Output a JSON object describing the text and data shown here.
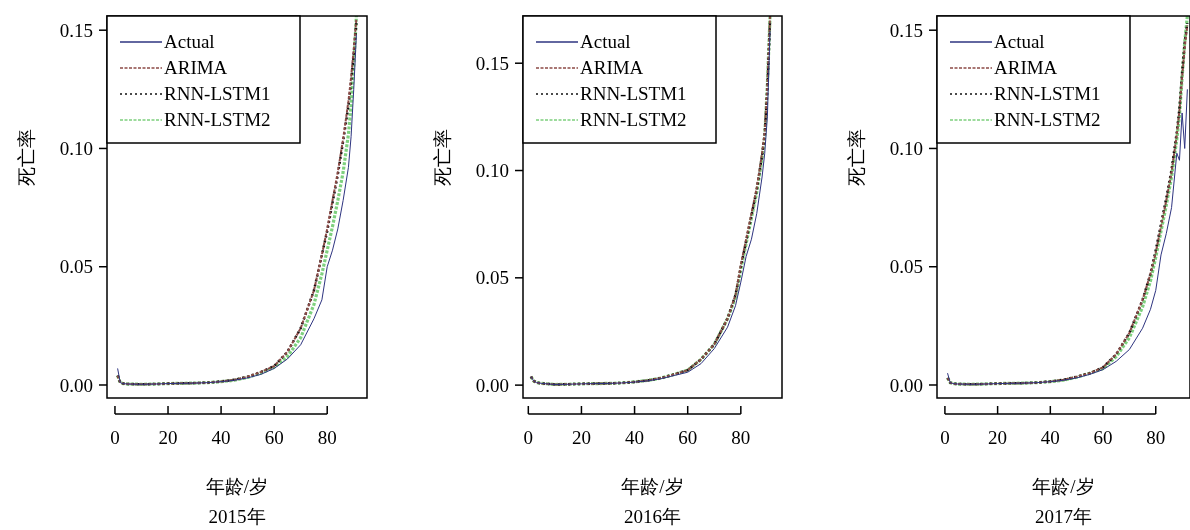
{
  "chart_data": [
    {
      "type": "line",
      "title": "2015年",
      "xlabel": "年龄/岁",
      "ylabel": "死亡率",
      "xlim": [
        -3,
        95
      ],
      "ylim": [
        -0.0055,
        0.156
      ],
      "xticks": [
        0,
        20,
        40,
        60,
        80
      ],
      "yticks": [
        {
          "value": 0,
          "label": "0.00"
        },
        {
          "value": 0.05,
          "label": "0.05"
        },
        {
          "value": 0.1,
          "label": "0.10"
        },
        {
          "value": 0.15,
          "label": "0.15"
        }
      ],
      "legend": "top left",
      "grid": false,
      "x": [
        1,
        2,
        3,
        5,
        10,
        15,
        20,
        25,
        30,
        35,
        40,
        45,
        50,
        55,
        60,
        65,
        70,
        75,
        78,
        80,
        82,
        84,
        86,
        88,
        89,
        90,
        91
      ],
      "series": [
        {
          "name": "Actual",
          "color": "#2e3480",
          "line_style": "solid",
          "values": [
            0.007,
            0.001,
            0.0006,
            0.0004,
            0.0003,
            0.0004,
            0.0006,
            0.0007,
            0.0008,
            0.001,
            0.0014,
            0.002,
            0.003,
            0.0045,
            0.007,
            0.011,
            0.017,
            0.028,
            0.036,
            0.05,
            0.057,
            0.066,
            0.078,
            0.092,
            0.105,
            0.125,
            0.148
          ]
        },
        {
          "name": "ARIMA",
          "color": "#8c4a46",
          "line_style": "dashed",
          "values": [
            0.004,
            0.001,
            0.0006,
            0.0004,
            0.0003,
            0.0004,
            0.0006,
            0.0007,
            0.0008,
            0.001,
            0.0015,
            0.0022,
            0.0035,
            0.0055,
            0.008,
            0.014,
            0.024,
            0.04,
            0.055,
            0.066,
            0.078,
            0.09,
            0.104,
            0.12,
            0.13,
            0.142,
            0.155
          ]
        },
        {
          "name": "RNN-LSTM1",
          "color": "#111111",
          "line_style": "dotted",
          "values": [
            0.004,
            0.001,
            0.0006,
            0.0004,
            0.0003,
            0.0004,
            0.0006,
            0.0007,
            0.0008,
            0.001,
            0.0015,
            0.0022,
            0.0035,
            0.0055,
            0.008,
            0.014,
            0.024,
            0.04,
            0.055,
            0.065,
            0.077,
            0.089,
            0.103,
            0.118,
            0.128,
            0.14,
            0.153
          ]
        },
        {
          "name": "RNN-LSTM2",
          "color": "#7ed07e",
          "line_style": "dashed",
          "values": [
            0.004,
            0.001,
            0.0006,
            0.0004,
            0.0003,
            0.0004,
            0.0006,
            0.0007,
            0.0008,
            0.001,
            0.0014,
            0.002,
            0.0032,
            0.005,
            0.0075,
            0.012,
            0.02,
            0.034,
            0.047,
            0.057,
            0.067,
            0.078,
            0.09,
            0.106,
            0.118,
            0.135,
            0.156
          ]
        }
      ]
    },
    {
      "type": "line",
      "title": "2016年",
      "xlabel": "年龄/岁",
      "ylabel": "死亡率",
      "xlim": [
        -2,
        95.5
      ],
      "ylim": [
        -0.006,
        0.172
      ],
      "xticks": [
        0,
        20,
        40,
        60,
        80
      ],
      "yticks": [
        {
          "value": 0,
          "label": "0.00"
        },
        {
          "value": 0.05,
          "label": "0.05"
        },
        {
          "value": 0.1,
          "label": "0.10"
        },
        {
          "value": 0.15,
          "label": "0.15"
        }
      ],
      "legend": "top left",
      "grid": false,
      "x": [
        1,
        2,
        3,
        5,
        10,
        15,
        20,
        25,
        30,
        35,
        40,
        45,
        50,
        55,
        60,
        65,
        70,
        75,
        78,
        80,
        82,
        84,
        86,
        88,
        89,
        90,
        91
      ],
      "series": [
        {
          "name": "Actual",
          "color": "#2e3480",
          "line_style": "solid",
          "values": [
            0.004,
            0.002,
            0.0012,
            0.0008,
            0.0003,
            0.0004,
            0.0006,
            0.0007,
            0.0008,
            0.001,
            0.0014,
            0.002,
            0.003,
            0.0045,
            0.006,
            0.01,
            0.017,
            0.027,
            0.037,
            0.048,
            0.06,
            0.068,
            0.08,
            0.097,
            0.108,
            0.125,
            0.165
          ]
        },
        {
          "name": "ARIMA",
          "color": "#8c4a46",
          "line_style": "dashed",
          "values": [
            0.004,
            0.002,
            0.0012,
            0.0008,
            0.0003,
            0.0004,
            0.0006,
            0.0007,
            0.0008,
            0.001,
            0.0015,
            0.0022,
            0.0033,
            0.005,
            0.007,
            0.012,
            0.019,
            0.031,
            0.042,
            0.056,
            0.068,
            0.08,
            0.092,
            0.108,
            0.118,
            0.14,
            0.172
          ]
        },
        {
          "name": "RNN-LSTM1",
          "color": "#111111",
          "line_style": "dotted",
          "values": [
            0.004,
            0.002,
            0.0012,
            0.0008,
            0.0003,
            0.0004,
            0.0006,
            0.0007,
            0.0008,
            0.001,
            0.0015,
            0.0022,
            0.0033,
            0.005,
            0.007,
            0.012,
            0.019,
            0.031,
            0.042,
            0.055,
            0.067,
            0.079,
            0.091,
            0.107,
            0.117,
            0.138,
            0.17
          ]
        },
        {
          "name": "RNN-LSTM2",
          "color": "#7ed07e",
          "line_style": "dashed",
          "values": [
            0.004,
            0.002,
            0.0012,
            0.0008,
            0.0003,
            0.0004,
            0.0006,
            0.0007,
            0.0008,
            0.001,
            0.0015,
            0.0022,
            0.0033,
            0.005,
            0.007,
            0.012,
            0.019,
            0.031,
            0.041,
            0.054,
            0.066,
            0.078,
            0.09,
            0.106,
            0.116,
            0.14,
            0.172
          ]
        }
      ]
    },
    {
      "type": "line",
      "title": "2017年",
      "xlabel": "年龄/岁",
      "ylabel": "死亡率",
      "xlim": [
        -3,
        93
      ],
      "ylim": [
        -0.0055,
        0.156
      ],
      "xticks": [
        0,
        20,
        40,
        60,
        80
      ],
      "yticks": [
        {
          "value": 0,
          "label": "0.00"
        },
        {
          "value": 0.05,
          "label": "0.05"
        },
        {
          "value": 0.1,
          "label": "0.10"
        },
        {
          "value": 0.15,
          "label": "0.15"
        }
      ],
      "legend": "top left",
      "grid": false,
      "x": [
        1,
        2,
        3,
        5,
        10,
        15,
        20,
        25,
        30,
        35,
        40,
        45,
        50,
        55,
        60,
        65,
        70,
        75,
        78,
        80,
        82,
        84,
        86,
        88,
        89,
        90,
        91,
        92
      ],
      "series": [
        {
          "name": "Actual",
          "color": "#2e3480",
          "line_style": "solid",
          "values": [
            0.005,
            0.001,
            0.0006,
            0.0004,
            0.0003,
            0.0004,
            0.0006,
            0.0007,
            0.0008,
            0.001,
            0.0014,
            0.002,
            0.003,
            0.0045,
            0.0065,
            0.01,
            0.015,
            0.024,
            0.032,
            0.04,
            0.055,
            0.064,
            0.075,
            0.098,
            0.095,
            0.115,
            0.1,
            0.125
          ]
        },
        {
          "name": "ARIMA",
          "color": "#8c4a46",
          "line_style": "dashed",
          "values": [
            0.003,
            0.001,
            0.0006,
            0.0004,
            0.0003,
            0.0004,
            0.0006,
            0.0007,
            0.0008,
            0.001,
            0.0015,
            0.0022,
            0.0035,
            0.005,
            0.0075,
            0.013,
            0.022,
            0.036,
            0.047,
            0.056,
            0.067,
            0.078,
            0.09,
            0.106,
            0.116,
            0.13,
            0.143,
            0.152
          ]
        },
        {
          "name": "RNN-LSTM1",
          "color": "#111111",
          "line_style": "dotted",
          "values": [
            0.003,
            0.001,
            0.0006,
            0.0004,
            0.0003,
            0.0004,
            0.0006,
            0.0007,
            0.0008,
            0.001,
            0.0015,
            0.0022,
            0.0035,
            0.005,
            0.0075,
            0.013,
            0.022,
            0.036,
            0.047,
            0.057,
            0.068,
            0.079,
            0.091,
            0.107,
            0.117,
            0.132,
            0.145,
            0.153
          ]
        },
        {
          "name": "RNN-LSTM2",
          "color": "#7ed07e",
          "line_style": "dashed",
          "values": [
            0.003,
            0.001,
            0.0006,
            0.0004,
            0.0003,
            0.0004,
            0.0006,
            0.0007,
            0.0008,
            0.001,
            0.0014,
            0.002,
            0.0033,
            0.005,
            0.007,
            0.012,
            0.02,
            0.033,
            0.044,
            0.054,
            0.065,
            0.076,
            0.088,
            0.104,
            0.114,
            0.13,
            0.145,
            0.156
          ]
        }
      ]
    }
  ]
}
